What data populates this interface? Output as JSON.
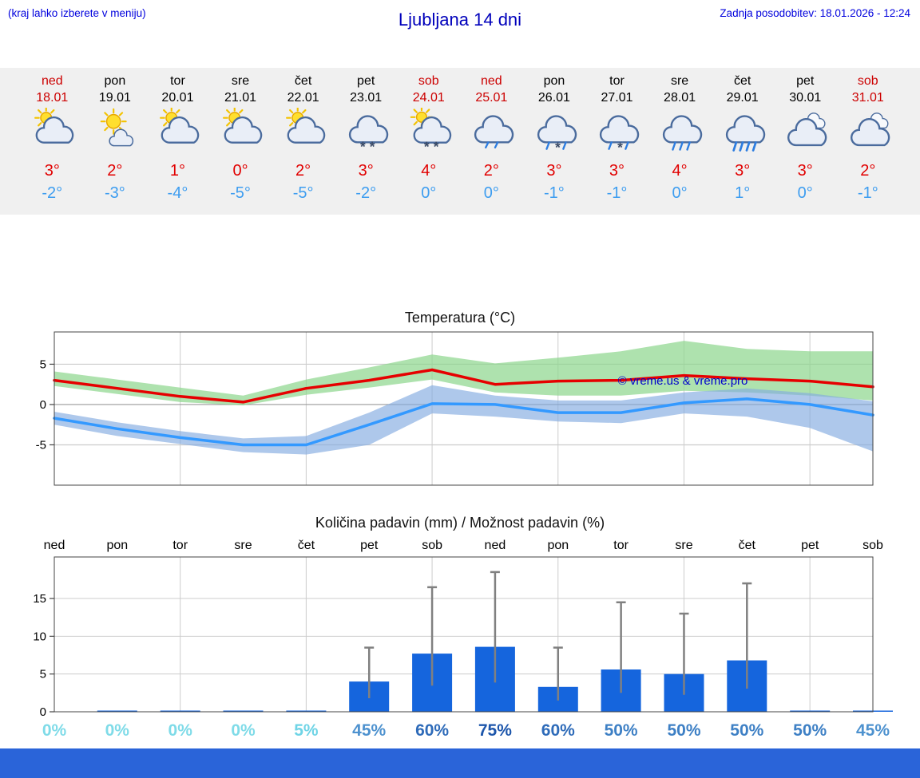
{
  "header": {
    "note_left": "(kraj lahko izberete v meniju)",
    "title": "Ljubljana 14 dni",
    "updated": "Zadnja posodobitev: 18.01.2026 - 12:24"
  },
  "colors": {
    "link_blue": "#0000dd",
    "title_blue": "#0000bb",
    "weekend_red": "#cc0000",
    "weekday_black": "#000000",
    "high_temp_red": "#e10000",
    "low_temp_blue": "#3d9df0",
    "strip_bg": "#f0f0f0",
    "bar_blue": "#1565dd",
    "whisker_gray": "#808080",
    "bottom_bar_blue": "#2a64d9",
    "watermark_blue": "#0000cc"
  },
  "forecast": {
    "days": [
      {
        "name": "ned",
        "date": "18.01",
        "weekend": true,
        "icon": "sun-cloud",
        "high": "3°",
        "low": "-2°"
      },
      {
        "name": "pon",
        "date": "19.01",
        "weekend": false,
        "icon": "sun-small-cloud",
        "high": "2°",
        "low": "-3°"
      },
      {
        "name": "tor",
        "date": "20.01",
        "weekend": false,
        "icon": "sun-cloud",
        "high": "1°",
        "low": "-4°"
      },
      {
        "name": "sre",
        "date": "21.01",
        "weekend": false,
        "icon": "sun-cloud",
        "high": "0°",
        "low": "-5°"
      },
      {
        "name": "čet",
        "date": "22.01",
        "weekend": false,
        "icon": "sun-cloud",
        "high": "2°",
        "low": "-5°"
      },
      {
        "name": "pet",
        "date": "23.01",
        "weekend": false,
        "icon": "cloud-snow",
        "high": "3°",
        "low": "-2°"
      },
      {
        "name": "sob",
        "date": "24.01",
        "weekend": true,
        "icon": "sun-cloud-snow",
        "high": "4°",
        "low": "0°"
      },
      {
        "name": "ned",
        "date": "25.01",
        "weekend": true,
        "icon": "cloud-rain-light",
        "high": "2°",
        "low": "0°"
      },
      {
        "name": "pon",
        "date": "26.01",
        "weekend": false,
        "icon": "cloud-rain-snow",
        "high": "3°",
        "low": "-1°"
      },
      {
        "name": "tor",
        "date": "27.01",
        "weekend": false,
        "icon": "cloud-rain-snow",
        "high": "3°",
        "low": "-1°"
      },
      {
        "name": "sre",
        "date": "28.01",
        "weekend": false,
        "icon": "cloud-rain",
        "high": "4°",
        "low": "0°"
      },
      {
        "name": "čet",
        "date": "29.01",
        "weekend": false,
        "icon": "cloud-rain-heavy",
        "high": "3°",
        "low": "1°"
      },
      {
        "name": "pet",
        "date": "30.01",
        "weekend": false,
        "icon": "cloud",
        "high": "3°",
        "low": "0°"
      },
      {
        "name": "sob",
        "date": "31.01",
        "weekend": true,
        "icon": "cloud",
        "high": "2°",
        "low": "-1°"
      }
    ]
  },
  "chart_data": [
    {
      "type": "line",
      "title": "Temperatura (°C)",
      "x": [
        "18.01",
        "19.01",
        "20.01",
        "21.01",
        "22.01",
        "23.01",
        "24.01",
        "25.01",
        "26.01",
        "27.01",
        "28.01",
        "29.01",
        "30.01",
        "31.01"
      ],
      "ylim": [
        -10,
        9
      ],
      "yticks": [
        5,
        0,
        -5
      ],
      "grid": true,
      "series": [
        {
          "name": "max-temp",
          "color": "#e60000",
          "values": [
            3,
            2,
            1,
            0.3,
            2,
            3,
            4.3,
            2.5,
            2.9,
            3,
            3.6,
            3.2,
            2.9,
            2.2
          ]
        },
        {
          "name": "min-temp",
          "color": "#3399ff",
          "values": [
            -1.7,
            -3,
            -4.1,
            -5,
            -5,
            -2.5,
            0.1,
            0,
            -1,
            -1,
            0.2,
            0.7,
            0,
            -1.3
          ]
        }
      ],
      "bands": [
        {
          "name": "max-temp-range",
          "color": "rgba(140,214,140,0.7)",
          "upper": [
            4.1,
            3.1,
            2.1,
            1.1,
            3.1,
            4.6,
            6.2,
            5.1,
            5.8,
            6.6,
            7.9,
            6.9,
            6.6,
            6.6
          ],
          "lower": [
            2.3,
            1.3,
            0.3,
            -0.1,
            1.2,
            2.1,
            3.1,
            1.5,
            1.1,
            1.1,
            1.7,
            1.5,
            1.1,
            0.5
          ]
        },
        {
          "name": "min-temp-range",
          "color": "rgba(130,170,225,0.65)",
          "upper": [
            -0.9,
            -2.2,
            -3.3,
            -4.2,
            -3.9,
            -1.0,
            2.4,
            1.1,
            0.5,
            0.5,
            1.5,
            2.0,
            1.4,
            0.4
          ],
          "lower": [
            -2.5,
            -3.9,
            -4.9,
            -5.9,
            -6.2,
            -5.0,
            -1.1,
            -1.5,
            -2.1,
            -2.3,
            -1.1,
            -1.5,
            -2.9,
            -5.8
          ]
        }
      ],
      "watermark": "© vreme.us & vreme.pro"
    },
    {
      "type": "bar",
      "title": "Količina padavin (mm) / Možnost padavin (%)",
      "categories": [
        "ned",
        "pon",
        "tor",
        "sre",
        "čet",
        "pet",
        "sob",
        "ned",
        "pon",
        "tor",
        "sre",
        "čet",
        "pet",
        "sob"
      ],
      "values": [
        0,
        0.1,
        0.1,
        0.1,
        0.1,
        4,
        7.7,
        8.6,
        3.3,
        5.6,
        5,
        6.8,
        0.1,
        0.1
      ],
      "whisker_max": [
        0,
        0,
        0,
        0,
        0,
        8.5,
        16.5,
        18.5,
        8.5,
        14.5,
        13,
        17,
        0,
        0
      ],
      "ylim": [
        0,
        20.5
      ],
      "yticks": [
        0,
        5,
        10,
        15
      ],
      "grid": true,
      "probabilities": [
        {
          "label": "0%",
          "color": "#7fdbe8"
        },
        {
          "label": "0%",
          "color": "#7fdbe8"
        },
        {
          "label": "0%",
          "color": "#7fdbe8"
        },
        {
          "label": "0%",
          "color": "#7fdbe8"
        },
        {
          "label": "5%",
          "color": "#6fd4e6"
        },
        {
          "label": "45%",
          "color": "#4e92cf"
        },
        {
          "label": "60%",
          "color": "#2e6bb9"
        },
        {
          "label": "75%",
          "color": "#1d56ab"
        },
        {
          "label": "60%",
          "color": "#2e6bb9"
        },
        {
          "label": "50%",
          "color": "#3e80c5"
        },
        {
          "label": "50%",
          "color": "#3e80c5"
        },
        {
          "label": "50%",
          "color": "#3e80c5"
        },
        {
          "label": "50%",
          "color": "#3e80c5"
        },
        {
          "label": "45%",
          "color": "#4e92cf"
        }
      ]
    }
  ]
}
